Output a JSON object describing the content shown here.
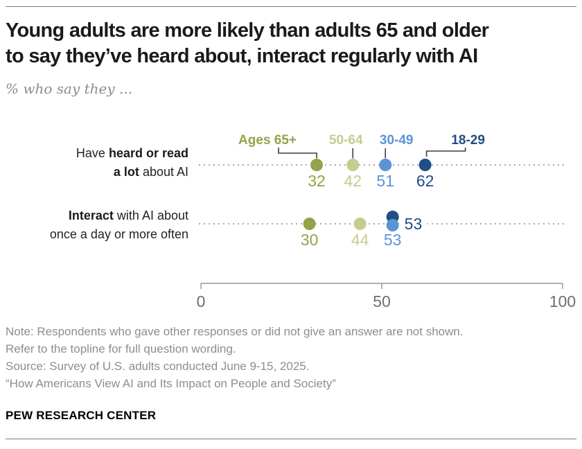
{
  "header": {
    "title": "Young adults are more likely than adults 65 and older\nto say they’ve heard about, interact regularly with AI",
    "subtitle": "% who say they ..."
  },
  "chart_data": {
    "type": "dot-plot",
    "unit": "%",
    "x_axis": {
      "min": 0,
      "max": 100,
      "ticks": [
        0,
        50,
        100
      ]
    },
    "legend_position": "top",
    "grid": false,
    "groups": [
      {
        "name": "Ages 65+",
        "color": "#97a04c"
      },
      {
        "name": "50-64",
        "color": "#c7cb8e"
      },
      {
        "name": "30-49",
        "color": "#5a94d8"
      },
      {
        "name": "18-29",
        "color": "#204e87"
      }
    ],
    "rows": [
      {
        "label_lines": [
          [
            {
              "t": "Have ",
              "b": false
            },
            {
              "t": "heard or read",
              "b": true
            }
          ],
          [
            {
              "t": "a lot",
              "b": true
            },
            {
              "t": " about AI",
              "b": false
            }
          ]
        ],
        "values": [
          32,
          42,
          51,
          62
        ]
      },
      {
        "label_lines": [
          [
            {
              "t": "Interact",
              "b": true
            },
            {
              "t": " with AI about",
              "b": false
            }
          ],
          [
            {
              "t": "once a day or more often",
              "b": false
            }
          ]
        ],
        "values": [
          30,
          44,
          53,
          53
        ]
      }
    ]
  },
  "notes": [
    "Note: Respondents who gave other responses or did not give an answer are not shown.",
    "Refer to the topline for full question wording.",
    "Source: Survey of U.S. adults conducted June 9-15, 2025.",
    "“How Americans View AI and Its Impact on People and Society”"
  ],
  "footer": {
    "brand": "PEW RESEARCH CENTER"
  },
  "colors": {
    "title": "#1a1a1a",
    "subtitle": "#8c8c8c",
    "note": "#8d8d8d",
    "axis": "#808080",
    "axis_label": "#6f6f6f",
    "dotline": "#a8a8a8",
    "connector": "#3d3d3d",
    "rule": "#7d7d7d"
  }
}
